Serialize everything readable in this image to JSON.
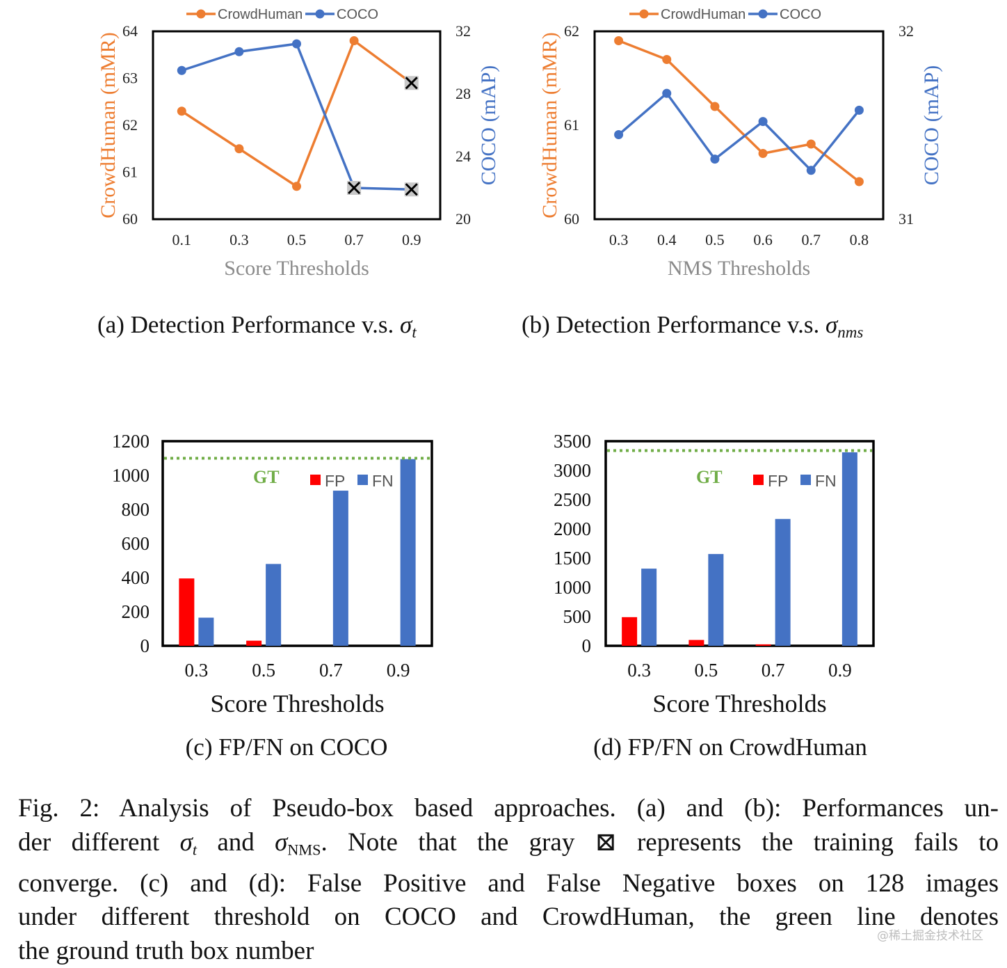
{
  "chart_data": [
    {
      "id": "a",
      "type": "line",
      "x": [
        "0.1",
        "0.3",
        "0.5",
        "0.7",
        "0.9"
      ],
      "xlabel": "Score Thresholds",
      "left_axis": {
        "label": "CrowdHuman (mMR)",
        "ylim": [
          60,
          64
        ],
        "ticks": [
          "60",
          "61",
          "62",
          "63",
          "64"
        ]
      },
      "right_axis": {
        "label": "COCO (mAP)",
        "ylim": [
          20,
          32
        ],
        "ticks": [
          "20",
          "24",
          "28",
          "32"
        ]
      },
      "series": [
        {
          "name": "CrowdHuman",
          "axis": "left",
          "color": "#ED7D31",
          "values": [
            62.3,
            61.5,
            60.7,
            63.8,
            62.9
          ],
          "failed": [
            false,
            false,
            false,
            false,
            true
          ]
        },
        {
          "name": "COCO",
          "axis": "right",
          "color": "#4472C4",
          "values": [
            29.5,
            30.7,
            31.2,
            22.0,
            21.9
          ],
          "failed": [
            false,
            false,
            false,
            true,
            true
          ]
        }
      ],
      "caption_text": "(a) Detection Performance v.s. ",
      "caption_symbol": "σ",
      "caption_sub": "t"
    },
    {
      "id": "b",
      "type": "line",
      "x": [
        "0.3",
        "0.4",
        "0.5",
        "0.6",
        "0.7",
        "0.8"
      ],
      "xlabel": "NMS Thresholds",
      "left_axis": {
        "label": "CrowdHuman (mMR)",
        "ylim": [
          60,
          62
        ],
        "ticks": [
          "60",
          "61",
          "62"
        ]
      },
      "right_axis": {
        "label": "COCO (mAP)",
        "ylim": [
          31,
          32
        ],
        "ticks": [
          "31",
          "32"
        ]
      },
      "series": [
        {
          "name": "CrowdHuman",
          "axis": "left",
          "color": "#ED7D31",
          "values": [
            61.9,
            61.7,
            61.2,
            60.7,
            60.8,
            60.4
          ]
        },
        {
          "name": "COCO",
          "axis": "right",
          "color": "#4472C4",
          "values": [
            31.45,
            31.67,
            31.32,
            31.52,
            31.26,
            31.58
          ]
        }
      ],
      "caption_text": "(b) Detection Performance v.s. ",
      "caption_symbol": "σ",
      "caption_sub": "nms"
    },
    {
      "id": "c",
      "type": "bar",
      "categories": [
        "0.3",
        "0.5",
        "0.7",
        "0.9"
      ],
      "xlabel": "Score Thresholds",
      "ylim": [
        0,
        1200
      ],
      "yticks": [
        "0",
        "200",
        "400",
        "600",
        "800",
        "1000",
        "1200"
      ],
      "series": [
        {
          "name": "FP",
          "color": "#FF0000",
          "values": [
            395,
            30,
            0,
            0
          ]
        },
        {
          "name": "FN",
          "color": "#4472C4",
          "values": [
            165,
            480,
            910,
            1095
          ]
        }
      ],
      "gt": {
        "label": "GT",
        "value": 1100,
        "color": "#70AD47"
      },
      "caption_text": "(c) FP/FN on COCO"
    },
    {
      "id": "d",
      "type": "bar",
      "categories": [
        "0.3",
        "0.5",
        "0.7",
        "0.9"
      ],
      "xlabel": "Score Thresholds",
      "ylim": [
        0,
        3500
      ],
      "yticks": [
        "0",
        "500",
        "1000",
        "1500",
        "2000",
        "2500",
        "3000",
        "3500"
      ],
      "series": [
        {
          "name": "FP",
          "color": "#FF0000",
          "values": [
            490,
            100,
            25,
            0
          ]
        },
        {
          "name": "FN",
          "color": "#4472C4",
          "values": [
            1320,
            1570,
            2170,
            3310
          ]
        }
      ],
      "gt": {
        "label": "GT",
        "value": 3340,
        "color": "#70AD47"
      },
      "caption_text": "(d) FP/FN on CrowdHuman"
    }
  ],
  "figure_caption": {
    "lines": [
      {
        "parts": [
          {
            "t": "Fig. 2: Analysis of Pseudo-box based approaches. (a) and (b): Performances un-"
          }
        ]
      },
      {
        "parts": [
          {
            "t": "der different "
          },
          {
            "sym": "σ",
            "sub": "t"
          },
          {
            "t": " and "
          },
          {
            "sym": "σ",
            "sub": "NMS"
          },
          {
            "t": ". Note that the gray ⊠ represents the training fails to"
          }
        ]
      },
      {
        "parts": [
          {
            "t": "converge. (c) and (d): False Positive and False Negative boxes on 128 images"
          }
        ]
      },
      {
        "parts": [
          {
            "t": "under different threshold on COCO and CrowdHuman, the green line denotes"
          }
        ]
      },
      {
        "parts": [
          {
            "t": "the ground truth box number"
          }
        ]
      }
    ]
  },
  "watermark": "@稀土掘金技术社区"
}
